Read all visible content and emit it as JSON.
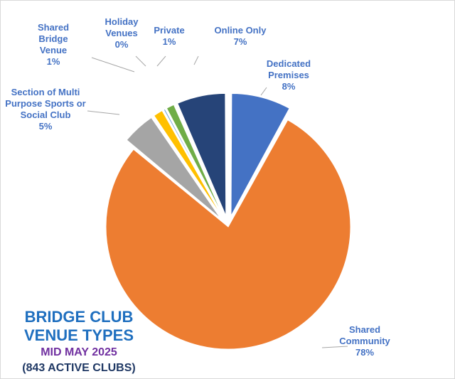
{
  "chart_data": {
    "type": "pie",
    "title_lines": [
      "BRIDGE CLUB",
      "VENUE TYPES"
    ],
    "subtitle": "MID MAY 2025",
    "subtitle2": "(843 ACTIVE CLUBS)",
    "slices": [
      {
        "label_lines": [
          "Dedicated",
          "Premises"
        ],
        "pct_label": "8%",
        "value": 8,
        "color": "#4472c4"
      },
      {
        "label_lines": [
          "Shared",
          "Community"
        ],
        "pct_label": "78%",
        "value": 78,
        "color": "#ed7d31"
      },
      {
        "label_lines": [
          "Section of Multi",
          "Purpose Sports or",
          "Social Club"
        ],
        "pct_label": "5%",
        "value": 4.5,
        "color": "#a5a5a5"
      },
      {
        "label_lines": [
          "Shared",
          "Bridge",
          "Venue"
        ],
        "pct_label": "1%",
        "value": 1.4,
        "color": "#ffc000"
      },
      {
        "label_lines": [
          "Holiday",
          "Venues"
        ],
        "pct_label": "0%",
        "value": 0.35,
        "color": "#5b9bd5"
      },
      {
        "label_lines": [
          "Private"
        ],
        "pct_label": "1%",
        "value": 1.2,
        "color": "#70ad47"
      },
      {
        "label_lines": [
          "Online Only"
        ],
        "pct_label": "7%",
        "value": 6.55,
        "color": "#264478"
      }
    ],
    "label_color": "#4472c4"
  }
}
